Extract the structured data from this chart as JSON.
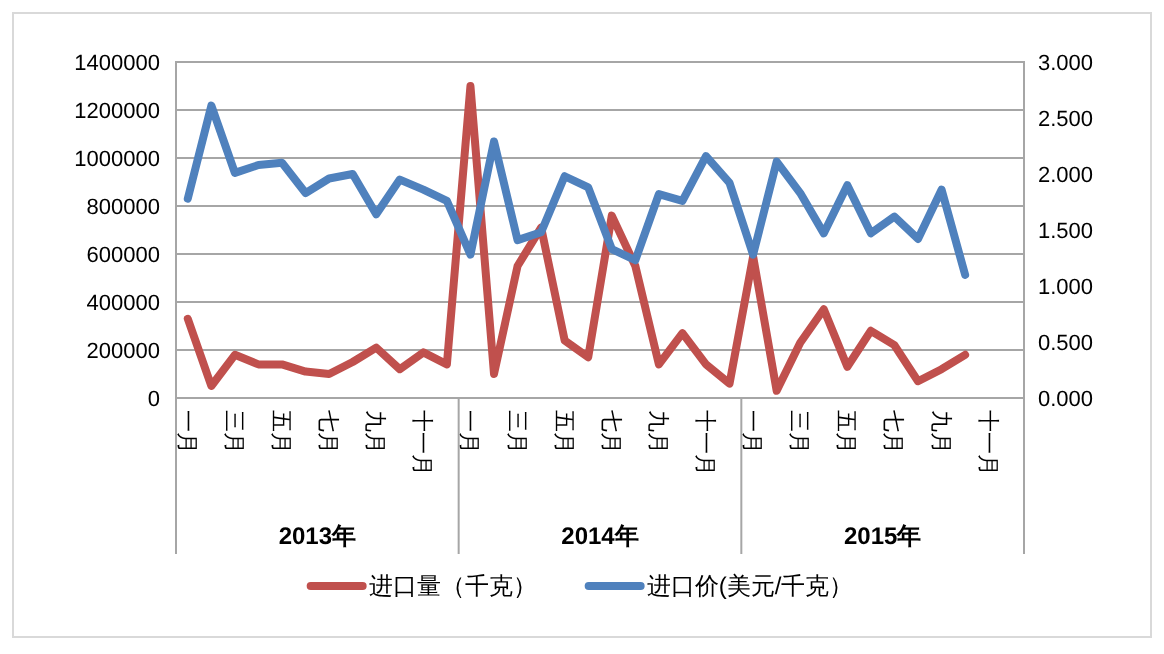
{
  "chart_data": {
    "type": "line",
    "categories": [
      "一月",
      null,
      "三月",
      null,
      "五月",
      null,
      "七月",
      null,
      "九月",
      null,
      "十一月",
      null,
      "一月",
      null,
      "三月",
      null,
      "五月",
      null,
      "七月",
      null,
      "九月",
      null,
      "十一月",
      null,
      "一月",
      null,
      "三月",
      null,
      "五月",
      null,
      "七月",
      null,
      "九月",
      null,
      "十一月",
      null
    ],
    "annotations": [
      "2013年",
      "2014年",
      "2015年"
    ],
    "series": [
      {
        "name": "进口量（千克）",
        "color": "#c0504d",
        "values": [
          330000,
          50000,
          180000,
          140000,
          140000,
          110000,
          100000,
          150000,
          210000,
          120000,
          190000,
          140000,
          1300000,
          100000,
          550000,
          710000,
          240000,
          170000,
          760000,
          550000,
          140000,
          270000,
          140000,
          60000,
          590000,
          30000,
          230000,
          370000,
          130000,
          280000,
          220000,
          70000,
          120000,
          180000,
          null,
          null
        ]
      },
      {
        "name": "进口价(美元/千克）",
        "color": "#4f81bd",
        "axis": "y2",
        "values": [
          1.78,
          2.61,
          2.01,
          2.08,
          2.1,
          1.83,
          1.96,
          2.0,
          1.64,
          1.95,
          1.86,
          1.76,
          1.28,
          2.29,
          1.41,
          1.48,
          1.98,
          1.88,
          1.33,
          1.23,
          1.82,
          1.76,
          2.16,
          1.92,
          1.28,
          2.11,
          1.83,
          1.47,
          1.9,
          1.47,
          1.62,
          1.42,
          1.86,
          1.1,
          null,
          null
        ]
      }
    ],
    "ylim": [
      0,
      1400000
    ],
    "yticks": [
      0,
      200000,
      400000,
      600000,
      800000,
      1000000,
      1200000,
      1400000
    ],
    "y2lim": [
      0,
      3
    ],
    "y2ticks": [
      {
        "value": 0,
        "label": "0.000"
      },
      {
        "value": 0.5,
        "label": "0.500"
      },
      {
        "value": 1,
        "label": "1.000"
      },
      {
        "value": 1.5,
        "label": "1.500"
      },
      {
        "value": 2,
        "label": "2.000"
      },
      {
        "value": 2.5,
        "label": "2.500"
      },
      {
        "value": 3,
        "label": "3.000"
      }
    ],
    "grid": "y",
    "legend": "bottom",
    "marker": "none",
    "line_style": "solid"
  }
}
